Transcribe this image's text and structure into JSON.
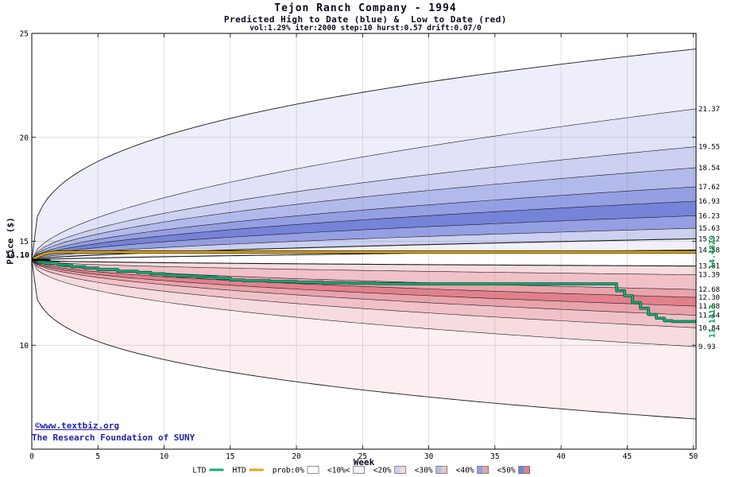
{
  "page": {
    "background": "#ffffff"
  },
  "footer": {
    "link": "©www.textbiz.org",
    "org": "The Research Foundation of SUNY",
    "color": "#2323ad"
  },
  "chart_data": {
    "type": "area",
    "title": "Tejon Ranch Company - 1994",
    "subtitle": "Predicted High to Date (blue) &  Low to Date (red)",
    "params": "vol:1.29% iter:2000 step:10 hurst:0.57 drift:0.07/0",
    "xlabel": "Week",
    "ylabel": "Price ($)",
    "xlim": [
      0,
      50.2
    ],
    "ylim": [
      5,
      25
    ],
    "xticks": [
      0,
      5,
      10,
      15,
      20,
      25,
      30,
      35,
      40,
      45,
      50
    ],
    "yticks": [
      10,
      15,
      20,
      25
    ],
    "grid": true,
    "start": {
      "week": 0,
      "price": 14.1,
      "label": "14.10"
    },
    "envelope": {
      "top_end": 24.25,
      "top_k": 0.33,
      "bottom_end": 6.45,
      "bottom_k": 0.29
    },
    "high_boundaries": [
      {
        "end": 21.37,
        "label": "21.37",
        "k": 0.55
      },
      {
        "end": 19.55,
        "label": "19.55",
        "k": 0.55
      },
      {
        "end": 18.54,
        "label": "18.54",
        "k": 0.55
      },
      {
        "end": 17.62,
        "label": "17.62",
        "k": 0.55
      },
      {
        "end": 16.93,
        "label": "16.93",
        "k": 0.55
      },
      {
        "end": 16.23,
        "label": "16.23",
        "k": 0.55
      },
      {
        "end": 15.63,
        "label": "15.63",
        "k": 0.58
      },
      {
        "end": 15.12,
        "label": "15.12",
        "k": 0.62
      },
      {
        "end": 14.58,
        "label": "14.58",
        "k": 0.7
      }
    ],
    "high_fills": [
      "#eeeefa",
      "#e0e2f7",
      "#ccd0f1",
      "#b2baeb",
      "#959fe3",
      "#7583d9",
      "#959fe3",
      "#ccd0f1",
      "#f1f1fb"
    ],
    "low_boundaries": [
      {
        "end": 13.81,
        "label": "13.81",
        "k": 0.5
      },
      {
        "end": 13.39,
        "label": "13.39",
        "k": 0.5
      },
      {
        "end": 12.68,
        "label": "12.68",
        "k": 0.5
      },
      {
        "end": 12.3,
        "label": "12.30",
        "k": 0.5
      },
      {
        "end": 11.88,
        "label": "11.88",
        "k": 0.5
      },
      {
        "end": 11.44,
        "label": "11.44",
        "k": 0.5
      },
      {
        "end": 10.84,
        "label": "10.84",
        "k": 0.48
      },
      {
        "end": 9.93,
        "label": "9.93",
        "k": 0.45
      }
    ],
    "low_fills": [
      "#f6dbdf",
      "#f0c2c8",
      "#e9a3ac",
      "#e2808c",
      "#e9a3ac",
      "#f0c2c8",
      "#f6dbdf",
      "#fceff1"
    ],
    "htd": {
      "name": "HTD",
      "value_label": "14.4829",
      "color": "#e2a813",
      "points": [
        [
          0,
          14.1
        ],
        [
          0.5,
          14.28
        ],
        [
          1.0,
          14.41
        ],
        [
          1.8,
          14.4829
        ],
        [
          50.2,
          14.4829
        ]
      ]
    },
    "ltd": {
      "name": "LTD",
      "value_label": "11.1413",
      "color": "#12b076",
      "steps": [
        [
          0,
          14.1
        ],
        [
          0.5,
          14.02
        ],
        [
          1,
          13.95
        ],
        [
          2,
          13.86
        ],
        [
          3,
          13.78
        ],
        [
          4,
          13.71
        ],
        [
          5,
          13.64
        ],
        [
          6.5,
          13.56
        ],
        [
          8,
          13.5
        ],
        [
          9,
          13.44
        ],
        [
          10,
          13.38
        ],
        [
          11,
          13.33
        ],
        [
          12.5,
          13.28
        ],
        [
          14,
          13.22
        ],
        [
          15,
          13.14
        ],
        [
          16,
          13.1
        ],
        [
          18,
          13.06
        ],
        [
          20,
          13.03
        ],
        [
          22,
          13.0
        ],
        [
          24,
          12.98
        ],
        [
          26,
          12.96
        ],
        [
          28,
          12.95
        ],
        [
          43.5,
          12.95
        ],
        [
          44.2,
          12.62
        ],
        [
          44.8,
          12.38
        ],
        [
          45.4,
          12.05
        ],
        [
          46,
          11.78
        ],
        [
          46.6,
          11.48
        ],
        [
          47.2,
          11.3
        ],
        [
          47.8,
          11.18
        ],
        [
          48.4,
          11.1413
        ],
        [
          50.2,
          11.1413
        ]
      ]
    },
    "legend": {
      "items": [
        {
          "label": "LTD",
          "type": "line",
          "color": "#12b076"
        },
        {
          "label": "HTD",
          "type": "line",
          "color": "#e2a813"
        },
        {
          "label": "prob:0%",
          "type": "box",
          "blue": "#ffffff",
          "red": "#ffffff"
        },
        {
          "label": "<10%<",
          "type": "box",
          "blue": "#eeeefa",
          "red": "#fceff1"
        },
        {
          "label": "<20%",
          "type": "box",
          "blue": "#ccd0f1",
          "red": "#f6dbdf"
        },
        {
          "label": "<30%",
          "type": "box",
          "blue": "#b2baeb",
          "red": "#f0c2c8"
        },
        {
          "label": "<40%",
          "type": "box",
          "blue": "#959fe3",
          "red": "#e9a3ac"
        },
        {
          "label": "<50%",
          "type": "box",
          "blue": "#7583d9",
          "red": "#e2808c"
        }
      ]
    },
    "colors": {
      "boundary": "#1a1a1a",
      "grid": "#8a8a8a",
      "label_green": "#00a050",
      "axis_text": "#000000",
      "title_text": "#0a0a20"
    }
  }
}
